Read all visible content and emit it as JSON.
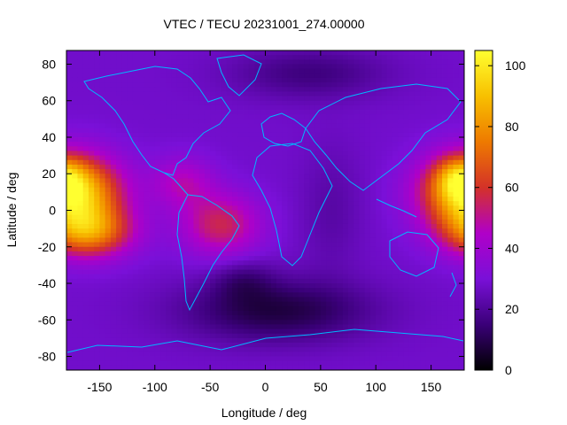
{
  "title": "VTEC / TECU 20231001_274.00000",
  "xlabel": "Longitude / deg",
  "ylabel": "Latitude / deg",
  "colorbar": {
    "ticks": [
      "0",
      "20",
      "40",
      "60",
      "80",
      "100"
    ],
    "range": [
      0,
      105
    ],
    "palette": [
      "#000000",
      "#3a0078",
      "#7a10d8",
      "#b000c8",
      "#d43228",
      "#ee7a00",
      "#f8c000",
      "#ffff30"
    ]
  },
  "coastline_color": "#00b8ff",
  "chart_data": {
    "type": "heatmap",
    "title": "VTEC / TECU 20231001_274.00000",
    "xlabel": "Longitude / deg",
    "ylabel": "Latitude / deg",
    "xlim": [
      -180,
      180
    ],
    "ylim": [
      -87.5,
      87.5
    ],
    "xticks": [
      "-150",
      "-100",
      "-50",
      "0",
      "50",
      "100",
      "150"
    ],
    "yticks": [
      "80",
      "60",
      "40",
      "20",
      "0",
      "-20",
      "-40",
      "-60",
      "-80"
    ],
    "value_range": [
      0,
      105
    ],
    "features": [
      {
        "name": "equatorial crest Pacific west",
        "lon": 178,
        "lat": 12,
        "vtec": 100
      },
      {
        "name": "equatorial crest Pacific north",
        "lon": -165,
        "lat": 18,
        "vtec": 100
      },
      {
        "name": "equatorial crest Pacific south",
        "lon": -155,
        "lat": -12,
        "vtec": 85
      },
      {
        "name": "south Atlantic anomaly",
        "lon": -40,
        "lat": -8,
        "vtec": 55
      },
      {
        "name": "polar minimum south",
        "lon": 20,
        "lat": -62,
        "vtec": 5
      },
      {
        "name": "trough south Atlantic",
        "lon": -20,
        "lat": -40,
        "vtec": 12
      }
    ]
  }
}
